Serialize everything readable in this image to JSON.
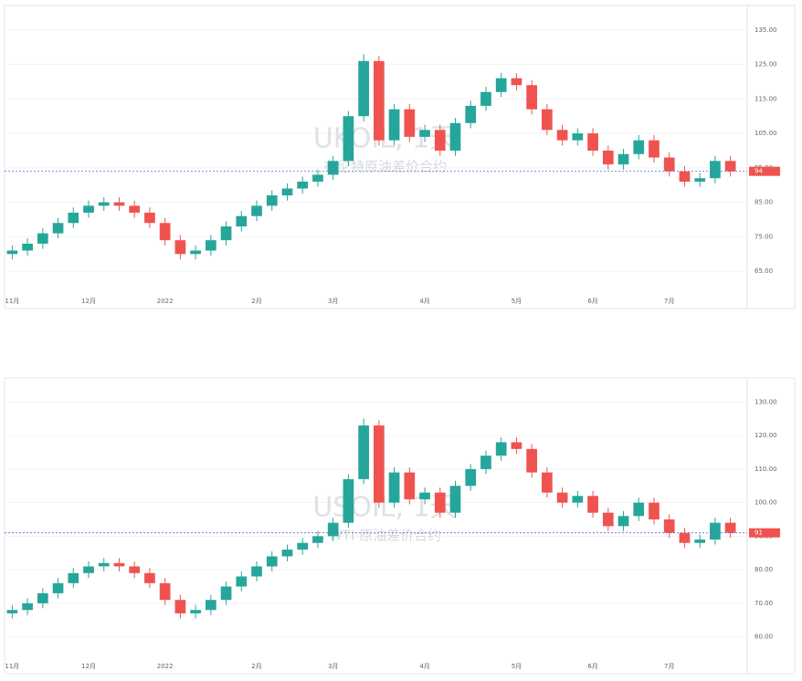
{
  "chart_data": [
    {
      "type": "candlestick",
      "watermark": "UKOIL, 1天",
      "watermark_sub": "布伦特原油差价合约",
      "up_color": "#26a69a",
      "down_color": "#ef5350",
      "grid": true,
      "last_price_line": true,
      "ylim": [
        60,
        140
      ],
      "yticks": [
        {
          "value": 65,
          "label": "65.00"
        },
        {
          "value": 75,
          "label": "75.00"
        },
        {
          "value": 85,
          "label": "85.00"
        },
        {
          "value": 95,
          "label": "95.00"
        },
        {
          "value": 105,
          "label": "105.00"
        },
        {
          "value": 115,
          "label": "115.00"
        },
        {
          "value": 125,
          "label": "125.00"
        },
        {
          "value": 135,
          "label": "135.00"
        }
      ],
      "categories": [
        "11月",
        null,
        null,
        null,
        null,
        "12月",
        null,
        null,
        null,
        null,
        "2022",
        null,
        null,
        null,
        null,
        null,
        "2月",
        null,
        null,
        null,
        null,
        "3月",
        null,
        null,
        null,
        null,
        null,
        "4月",
        null,
        null,
        null,
        null,
        null,
        "5月",
        null,
        null,
        null,
        null,
        "6月",
        null,
        null,
        null,
        null,
        "7月",
        null,
        null,
        null,
        null
      ],
      "values": [
        [
          70,
          72.5,
          68.5,
          71
        ],
        [
          71,
          74.5,
          69.5,
          73
        ],
        [
          73,
          77.5,
          71.5,
          76
        ],
        [
          76,
          80.5,
          74.5,
          79
        ],
        [
          79,
          83.5,
          77.5,
          82
        ],
        [
          82,
          85.5,
          80.5,
          84
        ],
        [
          84,
          86.5,
          82.5,
          85
        ],
        [
          85,
          86.5,
          82.5,
          84
        ],
        [
          84,
          85.5,
          80.5,
          82
        ],
        [
          82,
          83.5,
          77.5,
          79
        ],
        [
          79,
          80.5,
          72.5,
          74
        ],
        [
          74,
          75.5,
          68.5,
          70
        ],
        [
          70,
          72.5,
          68.5,
          71
        ],
        [
          71,
          75.5,
          69.5,
          74
        ],
        [
          74,
          79.5,
          72.5,
          78
        ],
        [
          78,
          82.5,
          76.5,
          81
        ],
        [
          81,
          85.5,
          79.5,
          84
        ],
        [
          84,
          88.5,
          82.5,
          87
        ],
        [
          87,
          90.5,
          85.5,
          89
        ],
        [
          89,
          92.5,
          87.5,
          91
        ],
        [
          91,
          94.5,
          89.5,
          93
        ],
        [
          93,
          98.5,
          91.5,
          97
        ],
        [
          97,
          111.5,
          95.5,
          110
        ],
        [
          110,
          128,
          108.5,
          126
        ],
        [
          126,
          127.5,
          101.5,
          103
        ],
        [
          103,
          113.5,
          101.5,
          112
        ],
        [
          112,
          113.5,
          102.5,
          104
        ],
        [
          104,
          107.5,
          102.5,
          106
        ],
        [
          106,
          107.5,
          98.5,
          100
        ],
        [
          100,
          109.5,
          98.5,
          108
        ],
        [
          108,
          114.5,
          106.5,
          113
        ],
        [
          113,
          118.5,
          111.5,
          117
        ],
        [
          117,
          122.5,
          115.5,
          121
        ],
        [
          121,
          122.5,
          117.5,
          119
        ],
        [
          119,
          120.5,
          110.5,
          112
        ],
        [
          112,
          113.5,
          104.5,
          106
        ],
        [
          106,
          107.5,
          101.5,
          103
        ],
        [
          103,
          106.5,
          101.5,
          105
        ],
        [
          105,
          106.5,
          98.5,
          100
        ],
        [
          100,
          101.5,
          94.5,
          96
        ],
        [
          96,
          100.5,
          94.5,
          99
        ],
        [
          99,
          104.5,
          97.5,
          103
        ],
        [
          103,
          104.5,
          96.5,
          98
        ],
        [
          98,
          99.5,
          92.5,
          94
        ],
        [
          94,
          95.5,
          89.5,
          91
        ],
        [
          91,
          93.5,
          89.5,
          92
        ],
        [
          92,
          98.5,
          90.5,
          97
        ],
        [
          97,
          98.5,
          92.5,
          94
        ]
      ]
    },
    {
      "type": "candlestick",
      "watermark": "USOIL, 1天",
      "watermark_sub": "WTI 原油差价合约",
      "up_color": "#26a69a",
      "down_color": "#ef5350",
      "grid": true,
      "last_price_line": true,
      "ylim": [
        55,
        135
      ],
      "yticks": [
        {
          "value": 60,
          "label": "60.00"
        },
        {
          "value": 70,
          "label": "70.00"
        },
        {
          "value": 80,
          "label": "80.00"
        },
        {
          "value": 90,
          "label": "90.00"
        },
        {
          "value": 100,
          "label": "100.00"
        },
        {
          "value": 110,
          "label": "110.00"
        },
        {
          "value": 120,
          "label": "120.00"
        },
        {
          "value": 130,
          "label": "130.00"
        }
      ],
      "categories": [
        "11月",
        null,
        null,
        null,
        null,
        "12月",
        null,
        null,
        null,
        null,
        "2022",
        null,
        null,
        null,
        null,
        null,
        "2月",
        null,
        null,
        null,
        null,
        "3月",
        null,
        null,
        null,
        null,
        null,
        "4月",
        null,
        null,
        null,
        null,
        null,
        "5月",
        null,
        null,
        null,
        null,
        "6月",
        null,
        null,
        null,
        null,
        "7月",
        null,
        null,
        null,
        null
      ],
      "values": [
        [
          67,
          69.5,
          65.5,
          68
        ],
        [
          68,
          71.5,
          66.5,
          70
        ],
        [
          70,
          74.5,
          68.5,
          73
        ],
        [
          73,
          77.5,
          71.5,
          76
        ],
        [
          76,
          80.5,
          74.5,
          79
        ],
        [
          79,
          82.5,
          77.5,
          81
        ],
        [
          81,
          83.5,
          79.5,
          82
        ],
        [
          82,
          83.5,
          79.5,
          81
        ],
        [
          81,
          82.5,
          77.5,
          79
        ],
        [
          79,
          80.5,
          74.5,
          76
        ],
        [
          76,
          77.5,
          69.5,
          71
        ],
        [
          71,
          72.5,
          65.5,
          67
        ],
        [
          67,
          69.5,
          65.5,
          68
        ],
        [
          68,
          72.5,
          66.5,
          71
        ],
        [
          71,
          76.5,
          69.5,
          75
        ],
        [
          75,
          79.5,
          73.5,
          78
        ],
        [
          78,
          82.5,
          76.5,
          81
        ],
        [
          81,
          85.5,
          79.5,
          84
        ],
        [
          84,
          87.5,
          82.5,
          86
        ],
        [
          86,
          89.5,
          84.5,
          88
        ],
        [
          88,
          91.5,
          86.5,
          90
        ],
        [
          90,
          95.5,
          88.5,
          94
        ],
        [
          94,
          108.5,
          92.5,
          107
        ],
        [
          107,
          125,
          105.5,
          123
        ],
        [
          123,
          124.5,
          98.5,
          100
        ],
        [
          100,
          110.5,
          98.5,
          109
        ],
        [
          109,
          110.5,
          99.5,
          101
        ],
        [
          101,
          104.5,
          99.5,
          103
        ],
        [
          103,
          104.5,
          95.5,
          97
        ],
        [
          97,
          106.5,
          95.5,
          105
        ],
        [
          105,
          111.5,
          103.5,
          110
        ],
        [
          110,
          115.5,
          108.5,
          114
        ],
        [
          114,
          119.5,
          112.5,
          118
        ],
        [
          118,
          119.5,
          114.5,
          116
        ],
        [
          116,
          117.5,
          107.5,
          109
        ],
        [
          109,
          110.5,
          101.5,
          103
        ],
        [
          103,
          104.5,
          98.5,
          100
        ],
        [
          100,
          103.5,
          98.5,
          102
        ],
        [
          102,
          103.5,
          95.5,
          97
        ],
        [
          97,
          98.5,
          91.5,
          93
        ],
        [
          93,
          97.5,
          91.5,
          96
        ],
        [
          96,
          101.5,
          94.5,
          100
        ],
        [
          100,
          101.5,
          93.5,
          95
        ],
        [
          95,
          96.5,
          89.5,
          91
        ],
        [
          91,
          92.5,
          86.5,
          88
        ],
        [
          88,
          90.5,
          86.5,
          89
        ],
        [
          89,
          95.5,
          87.5,
          94
        ],
        [
          94,
          95.5,
          89.5,
          91
        ]
      ]
    }
  ]
}
